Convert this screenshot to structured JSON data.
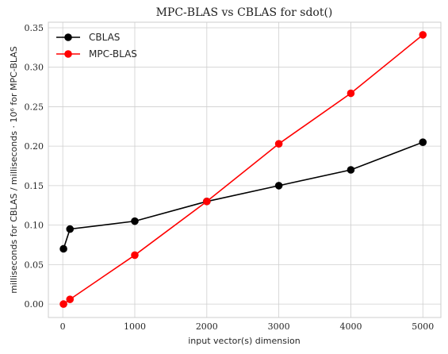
{
  "chart_data": {
    "type": "line",
    "title": "MPC-BLAS vs CBLAS for sdot()",
    "xlabel": "input vector(s) dimension",
    "ylabel": "milliseconds for CBLAS / milliseconds · 10⁶ for MPC-BLAS",
    "xlim": [
      -200,
      5250
    ],
    "ylim": [
      -0.017,
      0.357
    ],
    "xticks": [
      0,
      1000,
      2000,
      3000,
      4000,
      5000
    ],
    "xtick_labels": [
      "0",
      "1000",
      "2000",
      "3000",
      "4000",
      "5000"
    ],
    "yticks": [
      0.0,
      0.05,
      0.1,
      0.15,
      0.2,
      0.25,
      0.3,
      0.35
    ],
    "ytick_labels": [
      "0.00",
      "0.05",
      "0.10",
      "0.15",
      "0.20",
      "0.25",
      "0.30",
      "0.35"
    ],
    "grid": true,
    "legend_position": "top-left",
    "series": [
      {
        "name": "CBLAS",
        "color": "#000000",
        "x": [
          10,
          100,
          1000,
          2000,
          3000,
          4000,
          5000
        ],
        "y": [
          0.07,
          0.095,
          0.105,
          0.13,
          0.15,
          0.17,
          0.205
        ]
      },
      {
        "name": "MPC-BLAS",
        "color": "#ff0000",
        "x": [
          10,
          100,
          1000,
          2000,
          3000,
          4000,
          5000
        ],
        "y": [
          0.0,
          0.006,
          0.062,
          0.13,
          0.203,
          0.267,
          0.341
        ]
      }
    ]
  }
}
